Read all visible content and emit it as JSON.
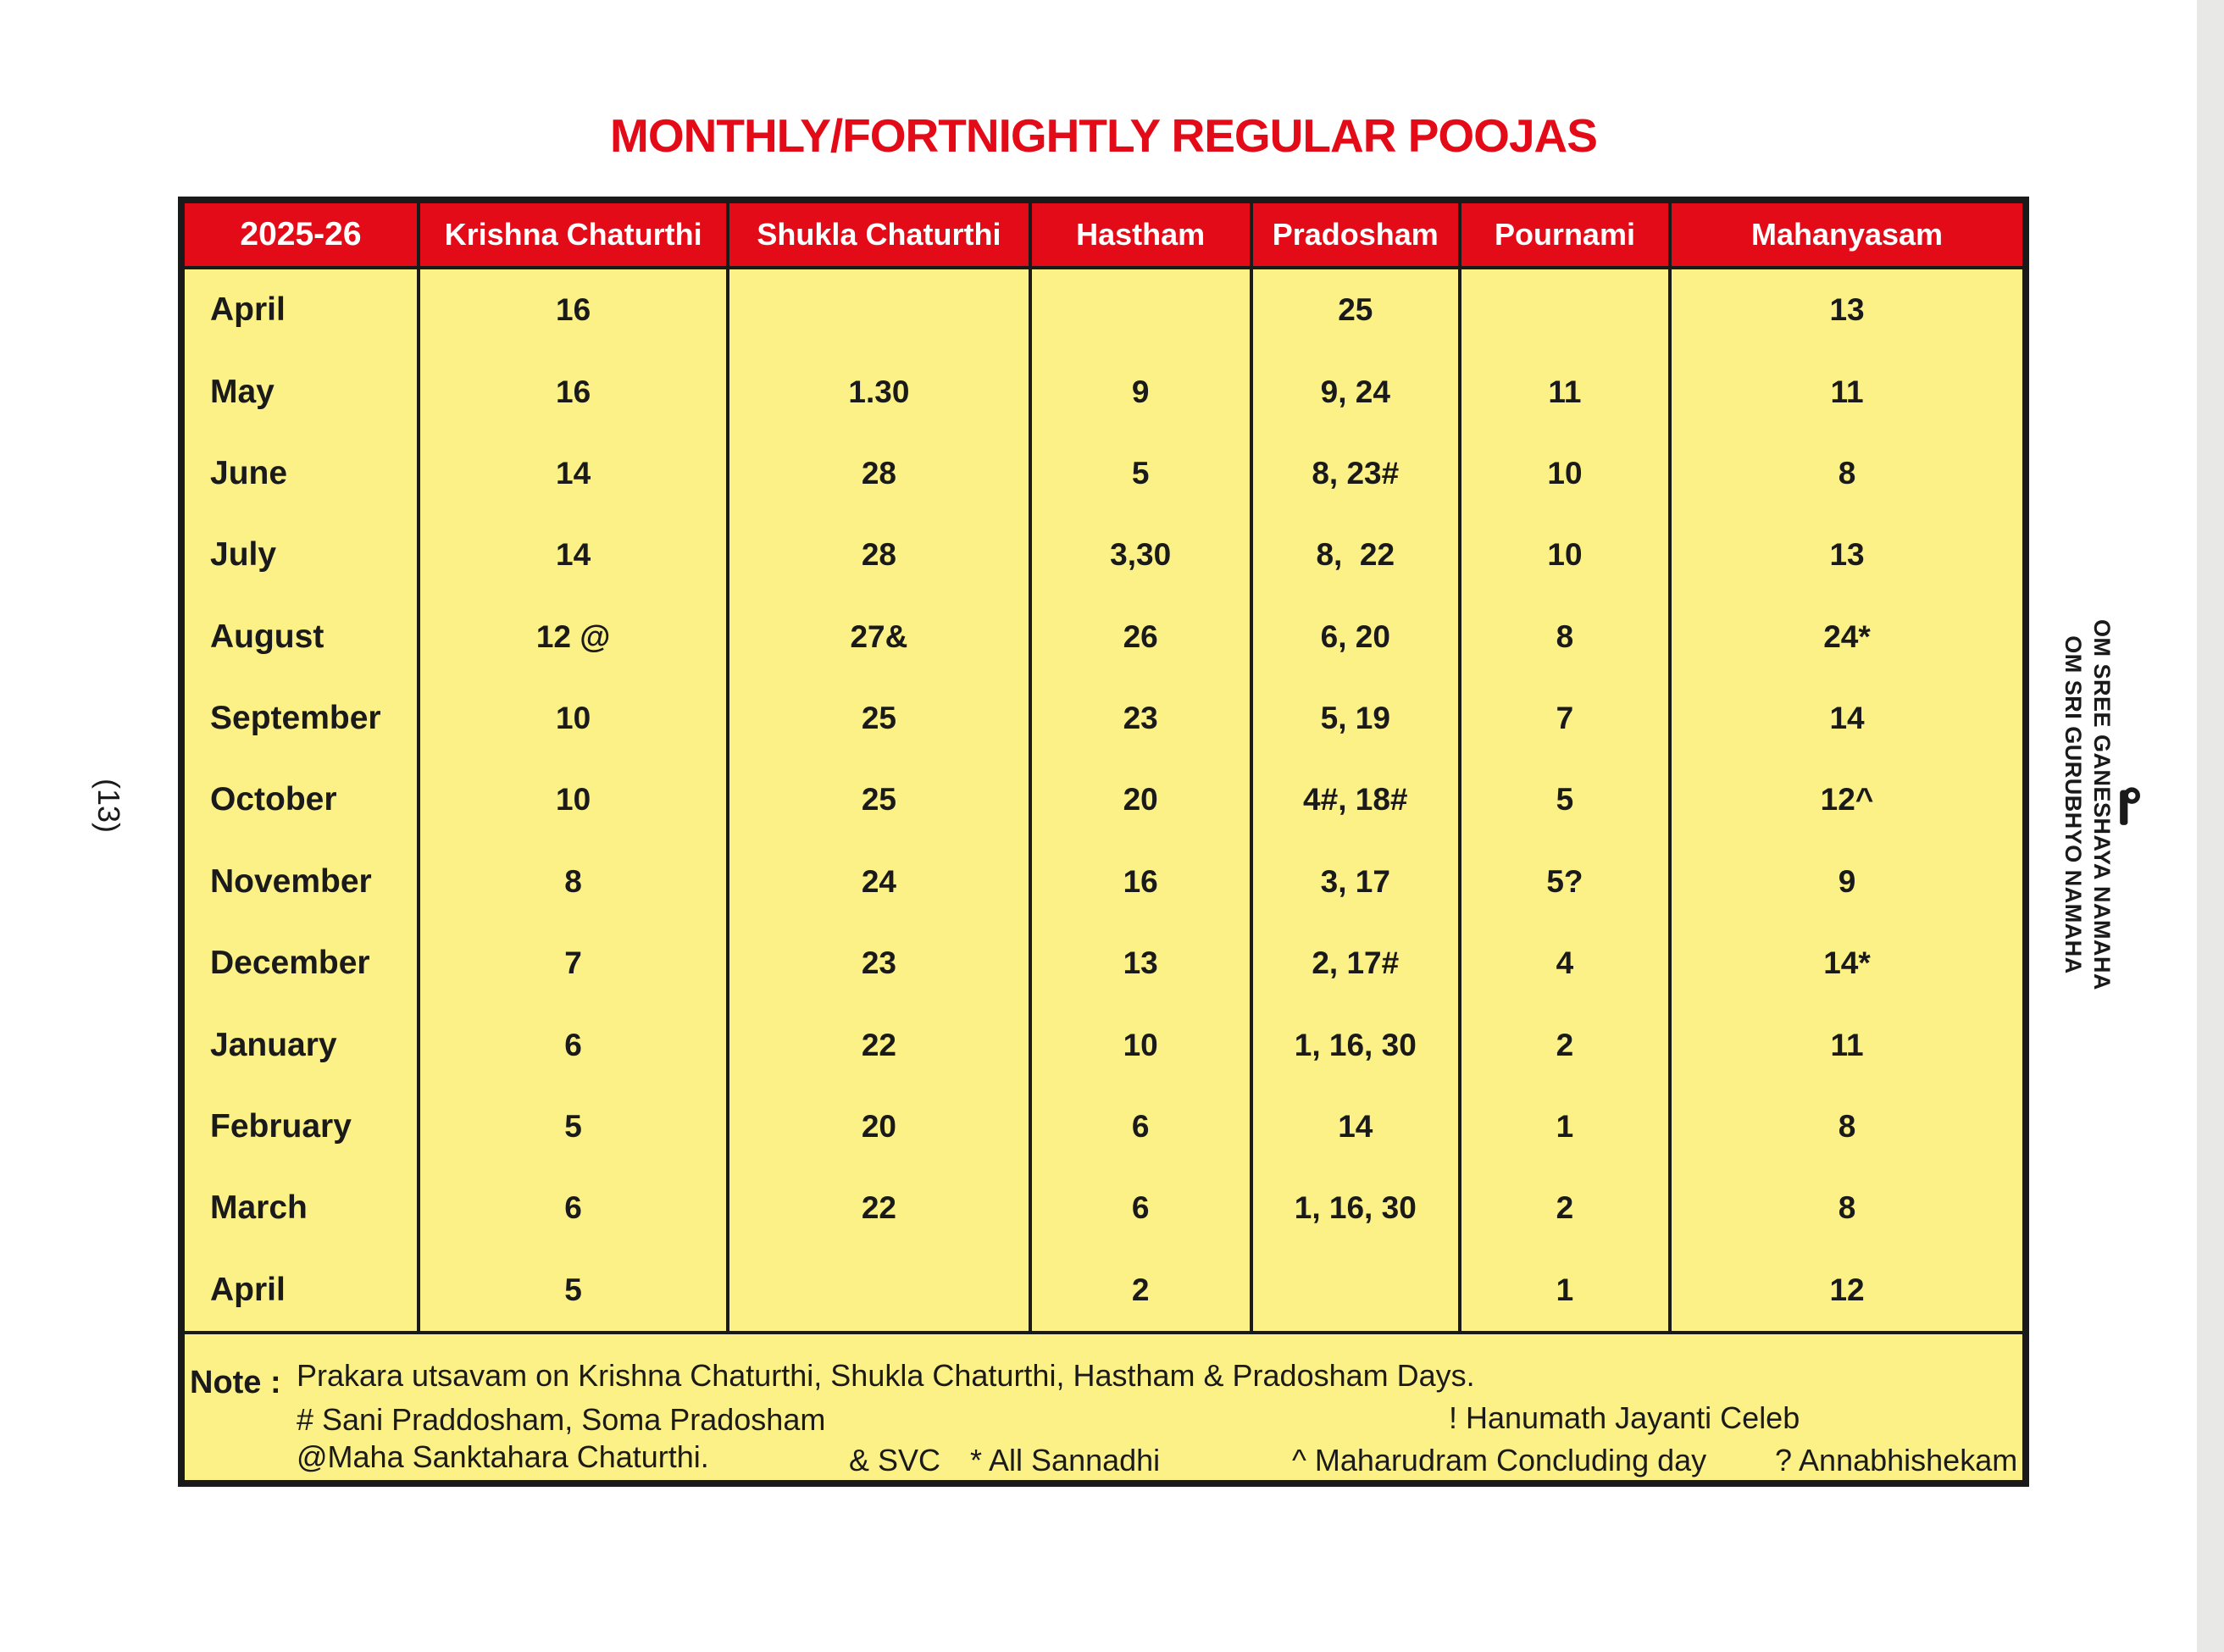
{
  "page": {
    "title": "MONTHLY/FORTNIGHTLY REGULAR POOJAS",
    "left_margin_text": "(13)",
    "right_margin": {
      "symbol": "pillaiyar-suzhi-icon",
      "line1": "OM SREE GANESHAYA NAMAHA",
      "line2": "OM SRI GURUBHYO NAMAHA"
    },
    "colors": {
      "accent_red": "#e20b17",
      "cell_yellow": "#fcf187",
      "border_black": "#1a1a1a"
    }
  },
  "table": {
    "columns": [
      "2025-26",
      "Krishna Chaturthi",
      "Shukla Chaturthi",
      "Hastham",
      "Pradosham",
      "Pournami",
      "Mahanyasam"
    ],
    "rows": [
      {
        "month": "April",
        "values": [
          "16",
          "",
          "",
          "25",
          "",
          "13"
        ]
      },
      {
        "month": "May",
        "values": [
          "16",
          "1.30",
          "9",
          "9, 24",
          "11",
          "11"
        ]
      },
      {
        "month": "June",
        "values": [
          "14",
          "28",
          "5",
          "8, 23#",
          "10",
          "8"
        ]
      },
      {
        "month": "July",
        "values": [
          "14",
          "28",
          "3,30",
          "8,  22",
          "10",
          "13"
        ]
      },
      {
        "month": "August",
        "values": [
          "12 @",
          "27&",
          "26",
          "6, 20",
          "8",
          "24*"
        ]
      },
      {
        "month": "September",
        "values": [
          "10",
          "25",
          "23",
          "5, 19",
          "7",
          "14"
        ]
      },
      {
        "month": "October",
        "values": [
          "10",
          "25",
          "20",
          "4#, 18#",
          "5",
          "12^"
        ]
      },
      {
        "month": "November",
        "values": [
          "8",
          "24",
          "16",
          "3, 17",
          "5?",
          "9"
        ]
      },
      {
        "month": "December",
        "values": [
          "7",
          "23",
          "13",
          "2, 17#",
          "4",
          "14*"
        ]
      },
      {
        "month": "January",
        "values": [
          "6",
          "22",
          "10",
          "1, 16, 30",
          "2",
          "11"
        ]
      },
      {
        "month": "February",
        "values": [
          "5",
          "20",
          "6",
          "14",
          "1",
          "8"
        ]
      },
      {
        "month": "March",
        "values": [
          "6",
          "22",
          "6",
          "1, 16, 30",
          "2",
          "8"
        ]
      },
      {
        "month": "April",
        "values": [
          "5",
          "",
          "2",
          "",
          "1",
          "12"
        ]
      }
    ]
  },
  "note": {
    "label": "Note :",
    "line1": "Prakara utsavam on Krishna Chaturthi, Shukla Chaturthi, Hastham & Pradosham Days.",
    "line2_left": "# Sani Praddosham, Soma Pradosham",
    "line2_right": "! Hanumath Jayanti Celeb",
    "line3_left": "@Maha Sanktahara Chaturthi.",
    "line3_items": [
      "& SVC",
      "* All Sannadhi",
      "^ Maharudram Concluding day",
      "? Annabhishekam"
    ]
  }
}
